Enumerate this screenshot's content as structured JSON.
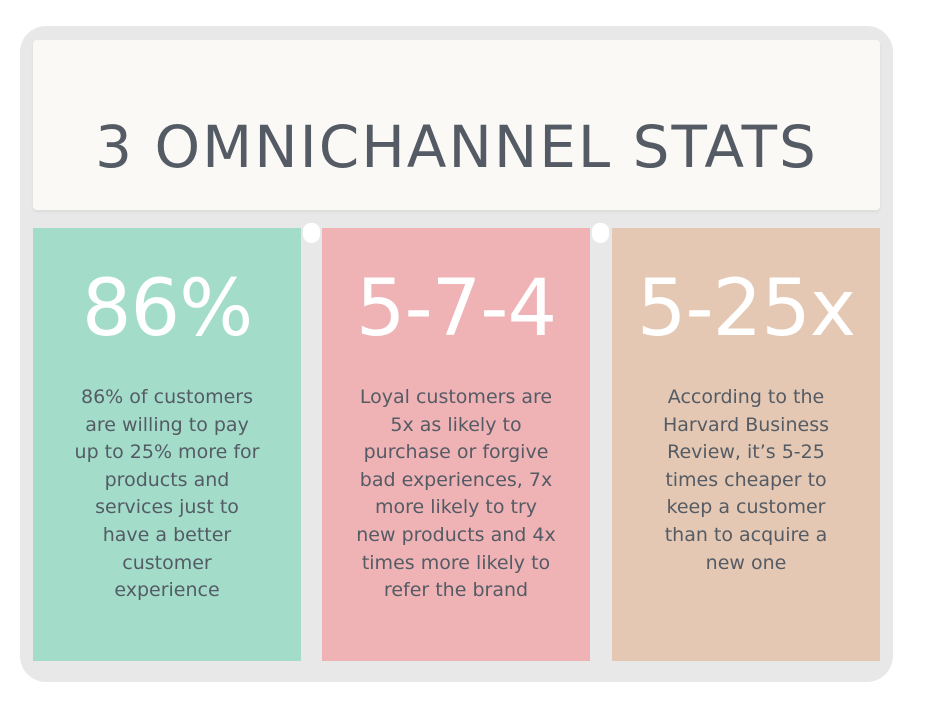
{
  "title": "3 OMNICHANNEL STATS",
  "stats": [
    {
      "value": "86%",
      "lines": [
        "86% of customers",
        "are willing to pay",
        "up to 25% more for",
        "products and",
        "services just to",
        "have a better",
        "customer",
        "experience"
      ],
      "color": "#a3ddca"
    },
    {
      "value": "5-7-4",
      "lines": [
        "Loyal customers are",
        "5x as likely to",
        "purchase or forgive",
        "bad experiences, 7x",
        "more likely to try",
        "new products and 4x",
        "times more likely to",
        "refer the brand"
      ],
      "color": "#efb3b6"
    },
    {
      "value": "5-25x",
      "lines": [
        "According to the",
        "Harvard Business",
        "Review, it’s 5-25",
        "times cheaper to",
        "keep a customer",
        "than to acquire a",
        "new one"
      ],
      "color": "#e4c8b3"
    }
  ],
  "colors": {
    "text": "#545b64",
    "background_frame": "#e8e8e8",
    "title_box": "#fbf9f5"
  }
}
